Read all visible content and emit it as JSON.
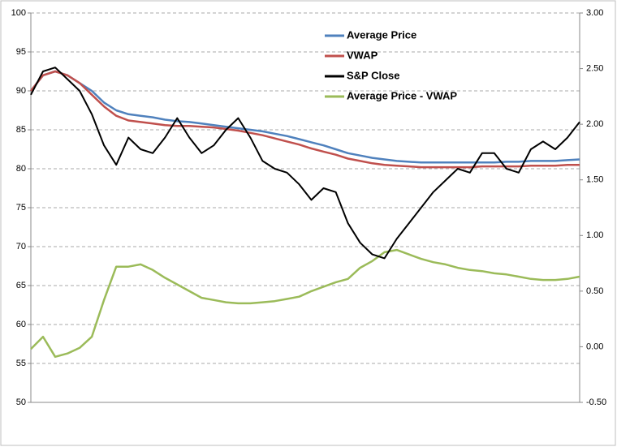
{
  "chart_data": {
    "type": "line",
    "categories": [
      null,
      null,
      null,
      null,
      null,
      null,
      null,
      null,
      null,
      null,
      null,
      null,
      null,
      null,
      null,
      null,
      null,
      null,
      null,
      null,
      null,
      null,
      null,
      null,
      null,
      null,
      null,
      null,
      null,
      null,
      null,
      null,
      null,
      null,
      null,
      null,
      null,
      null,
      null,
      null,
      null,
      null,
      null,
      null,
      null,
      null
    ],
    "series": [
      {
        "name": "Average Price",
        "color": "#4f81bd",
        "axis": "y",
        "values": [
          90,
          92,
          92.5,
          92,
          91,
          90,
          88.5,
          87.5,
          87,
          86.8,
          86.6,
          86.3,
          86.1,
          86,
          85.8,
          85.6,
          85.4,
          85.2,
          85,
          84.8,
          84.5,
          84.2,
          83.8,
          83.4,
          83,
          82.5,
          82,
          81.7,
          81.4,
          81.2,
          81,
          80.9,
          80.8,
          80.8,
          80.8,
          80.8,
          80.8,
          80.8,
          80.8,
          80.9,
          80.9,
          81,
          81,
          81,
          81.1,
          81.2
        ]
      },
      {
        "name": "VWAP",
        "color": "#c0504d",
        "axis": "y",
        "values": [
          90,
          92,
          92.5,
          92,
          91,
          89.5,
          88,
          86.8,
          86.2,
          86,
          85.8,
          85.6,
          85.5,
          85.5,
          85.4,
          85.3,
          85.1,
          84.9,
          84.6,
          84.3,
          83.9,
          83.5,
          83.1,
          82.6,
          82.2,
          81.8,
          81.3,
          81,
          80.7,
          80.5,
          80.4,
          80.3,
          80.2,
          80.2,
          80.2,
          80.2,
          80.2,
          80.3,
          80.3,
          80.3,
          80.3,
          80.4,
          80.4,
          80.4,
          80.5,
          80.5
        ]
      },
      {
        "name": "S&P Close",
        "color": "#000000",
        "axis": "y",
        "values": [
          89.5,
          92.5,
          93,
          91.5,
          90,
          87,
          83,
          80.5,
          84,
          82.5,
          82,
          84,
          86.5,
          84,
          82,
          83,
          85,
          86.5,
          84,
          81,
          80,
          79.5,
          78,
          76,
          77.5,
          77,
          73,
          70.5,
          69,
          68.5,
          71,
          73,
          75,
          77,
          78.5,
          80,
          79.5,
          82,
          82,
          80,
          79.5,
          82.5,
          83.5,
          82.5,
          84,
          86
        ]
      },
      {
        "name": "Average Price - VWAP",
        "color": "#9bbb59",
        "axis": "y2",
        "values": [
          -0.02,
          0.09,
          -0.09,
          -0.06,
          -0.01,
          0.09,
          0.42,
          0.72,
          0.72,
          0.74,
          0.69,
          0.62,
          0.56,
          0.5,
          0.44,
          0.42,
          0.4,
          0.39,
          0.39,
          0.4,
          0.41,
          0.43,
          0.45,
          0.5,
          0.54,
          0.58,
          0.61,
          0.71,
          0.77,
          0.85,
          0.87,
          0.83,
          0.79,
          0.76,
          0.74,
          0.71,
          0.69,
          0.68,
          0.66,
          0.65,
          0.63,
          0.61,
          0.6,
          0.6,
          0.61,
          0.63
        ]
      }
    ],
    "ylim": [
      50,
      100
    ],
    "yticks": [
      50,
      55,
      60,
      65,
      70,
      75,
      80,
      85,
      90,
      95,
      100
    ],
    "y2lim": [
      -0.5,
      3
    ],
    "y2ticks": [
      {
        "value": -0.5,
        "label": "-0.50"
      },
      {
        "value": 0,
        "label": "0.00"
      },
      {
        "value": 0.5,
        "label": "0.50"
      },
      {
        "value": 1,
        "label": "1.00"
      },
      {
        "value": 1.5,
        "label": "1.50"
      },
      {
        "value": 2,
        "label": "2.00"
      },
      {
        "value": 2.5,
        "label": "2.50"
      },
      {
        "value": 3,
        "label": "3.00"
      }
    ],
    "grid": true,
    "legend": "top"
  }
}
